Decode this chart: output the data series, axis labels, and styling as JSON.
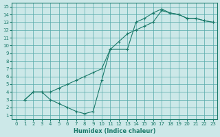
{
  "xlabel": "Humidex (Indice chaleur)",
  "bg_color": "#cce8e8",
  "grid_color": "#55aaaa",
  "line_color": "#1a7a6a",
  "xlim": [
    -0.5,
    23.5
  ],
  "ylim": [
    0.5,
    15.5
  ],
  "xticks": [
    0,
    1,
    2,
    3,
    4,
    5,
    6,
    7,
    8,
    9,
    10,
    11,
    12,
    13,
    14,
    15,
    16,
    17,
    18,
    19,
    20,
    21,
    22,
    23
  ],
  "yticks": [
    1,
    2,
    3,
    4,
    5,
    6,
    7,
    8,
    9,
    10,
    11,
    12,
    13,
    14,
    15
  ],
  "curve1_x": [
    1,
    2,
    3,
    4,
    5,
    6,
    7,
    8,
    9,
    10,
    11,
    13,
    14,
    15,
    16,
    17,
    18,
    19,
    20,
    21,
    22,
    23
  ],
  "curve1_y": [
    3,
    4,
    4,
    3,
    2.5,
    2,
    1.5,
    1.2,
    1.5,
    5.5,
    9.5,
    9.5,
    13,
    13.5,
    14.2,
    14.7,
    14.2,
    14.0,
    13.5,
    13.5,
    13.2,
    13.0
  ],
  "curve2_x": [
    1,
    2,
    3,
    4,
    5,
    6,
    7,
    8,
    9,
    10,
    11,
    12,
    13,
    14,
    15,
    16,
    17,
    18,
    19,
    20,
    21,
    22,
    23
  ],
  "curve2_y": [
    3,
    4,
    4,
    4,
    4.5,
    5.0,
    5.5,
    6.0,
    6.5,
    7.0,
    9.5,
    10.5,
    11.5,
    12.0,
    12.5,
    13.0,
    14.5,
    14.2,
    14.0,
    13.5,
    13.5,
    13.2,
    13.0
  ]
}
